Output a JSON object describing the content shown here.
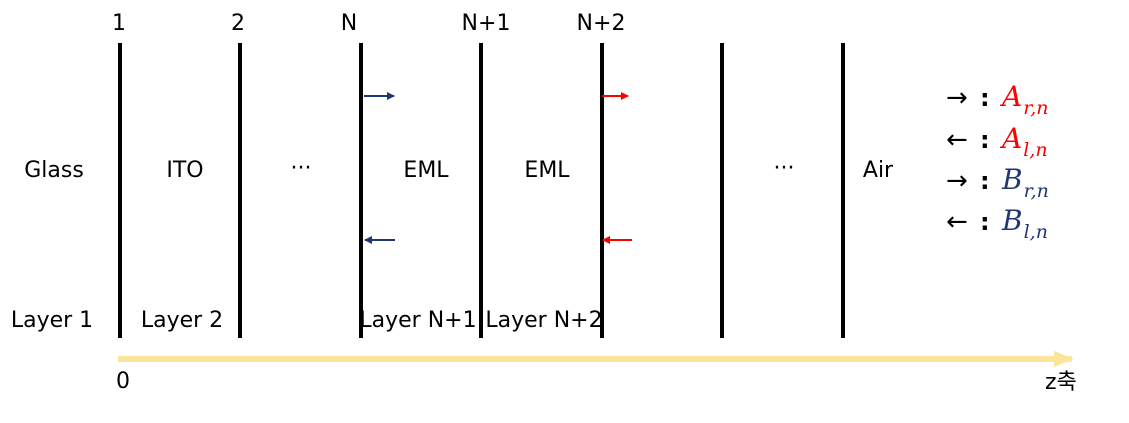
{
  "boundary_labels": [
    "1",
    "2",
    "N",
    "N+1",
    "N+2"
  ],
  "layer_materials": {
    "glass": "Glass",
    "ito": "ITO",
    "ellipsis_left": "···",
    "eml_1": "EML",
    "eml_2": "EML",
    "ellipsis_right": "···",
    "air": "Air"
  },
  "layer_names": {
    "layer_1": "Layer 1",
    "layer_2": "Layer 2",
    "layer_n1": "Layer N+1",
    "layer_n2": "Layer N+2"
  },
  "axis": {
    "origin": "0",
    "label": "z축",
    "color": "#fbe59b"
  },
  "legend": [
    {
      "arrow": "→",
      "colon": ":",
      "symbol": "A",
      "subscript": "r,n",
      "color": "#ff0000"
    },
    {
      "arrow": "←",
      "colon": ":",
      "symbol": "A",
      "subscript": "l,n",
      "color": "#ff0000"
    },
    {
      "arrow": "→",
      "colon": ":",
      "symbol": "B",
      "subscript": "r,n",
      "color": "#1f3872"
    },
    {
      "arrow": "←",
      "colon": ":",
      "symbol": "B",
      "subscript": "l,n",
      "color": "#1f3872"
    }
  ],
  "colors": {
    "navy": "#1f3872",
    "red": "#ff0000"
  }
}
